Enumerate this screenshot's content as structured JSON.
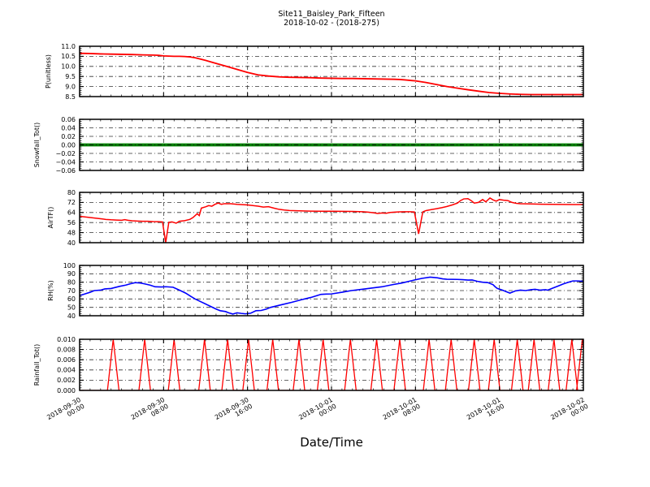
{
  "figure": {
    "title_line1": "Site11_Baisley_Park_Fifteen",
    "title_line2": "2018-10-02 - (2018-275)",
    "background": "#ffffff"
  },
  "x_axis": {
    "label": "Date/Time",
    "range_hours": [
      0,
      48
    ],
    "major_tick_hours": [
      0,
      8,
      16,
      24,
      32,
      40,
      48
    ],
    "minor_tick_step_hours": 1,
    "tick_labels": [
      [
        "2018-09-30",
        "00:00"
      ],
      [
        "2018-09-30",
        "08:00"
      ],
      [
        "2018-09-30",
        "16:00"
      ],
      [
        "2018-10-01",
        "00:00"
      ],
      [
        "2018-10-01",
        "08:00"
      ],
      [
        "2018-10-01",
        "16:00"
      ],
      [
        "2018-10-02",
        "00:00"
      ]
    ],
    "grid": true,
    "grid_style": "dash-dot",
    "grid_color": "#333333"
  },
  "chart_data": [
    {
      "type": "line",
      "name": "p-unitless",
      "ylabel": "P(unitless)",
      "color": "#ff0000",
      "line_width": 1.8,
      "ylim": [
        8.5,
        11.0
      ],
      "yticks": [
        8.5,
        9.0,
        9.5,
        10.0,
        10.5,
        11.0
      ],
      "ytick_labels": [
        "8.5",
        "9.0",
        "9.5",
        "10.0",
        "10.5",
        "11.0"
      ],
      "grid": true,
      "x": [
        0,
        1,
        2,
        3,
        4,
        5,
        6,
        7,
        7.5,
        8,
        8.5,
        9,
        9.5,
        10,
        10.5,
        11,
        12,
        13,
        14,
        15,
        16,
        17,
        18,
        19,
        20,
        21,
        22,
        23,
        24,
        25,
        26,
        27,
        28,
        29,
        30,
        30.5,
        31,
        32,
        33,
        34,
        35,
        36,
        37,
        38,
        39,
        40,
        41,
        42,
        43,
        44,
        45,
        46,
        47,
        48
      ],
      "y": [
        10.65,
        10.64,
        10.62,
        10.61,
        10.6,
        10.59,
        10.57,
        10.56,
        10.55,
        10.52,
        10.51,
        10.5,
        10.5,
        10.49,
        10.47,
        10.43,
        10.3,
        10.15,
        10.0,
        9.85,
        9.7,
        9.58,
        9.52,
        9.48,
        9.46,
        9.45,
        9.44,
        9.42,
        9.41,
        9.4,
        9.4,
        9.39,
        9.38,
        9.37,
        9.36,
        9.35,
        9.33,
        9.28,
        9.2,
        9.1,
        9.0,
        8.92,
        8.84,
        8.77,
        8.7,
        8.66,
        8.63,
        8.61,
        8.6,
        8.6,
        8.6,
        8.6,
        8.6,
        8.6
      ]
    },
    {
      "type": "line",
      "name": "snowfall-tot",
      "ylabel": "Snowfall_Tot()",
      "color": "#008000",
      "line_width": 3.8,
      "ylim": [
        -0.06,
        0.06
      ],
      "yticks": [
        -0.06,
        -0.04,
        -0.02,
        0.0,
        0.02,
        0.04,
        0.06
      ],
      "ytick_labels": [
        "−0.06",
        "−0.04",
        "−0.02",
        "0.00",
        "0.02",
        "0.04",
        "0.06"
      ],
      "grid": true,
      "zero_grid_overlay": true,
      "x": [
        0,
        48
      ],
      "y": [
        0,
        0
      ]
    },
    {
      "type": "line",
      "name": "airtf",
      "ylabel": "AirTF()",
      "color": "#ff0000",
      "line_width": 1.5,
      "ylim": [
        40,
        80
      ],
      "yticks": [
        40,
        48,
        56,
        64,
        72,
        80
      ],
      "ytick_labels": [
        "40",
        "48",
        "56",
        "64",
        "72",
        "80"
      ],
      "grid": true,
      "x": [
        0,
        0.5,
        1,
        1.5,
        2,
        2.5,
        3,
        3.5,
        4,
        4.3,
        4.6,
        5,
        5.5,
        6,
        6.5,
        7,
        7.5,
        7.9,
        8.2,
        8.5,
        8.8,
        9.2,
        9.5,
        10,
        10.5,
        10.8,
        11,
        11.2,
        11.4,
        11.6,
        12,
        12.3,
        12.6,
        12.9,
        13.2,
        13.5,
        13.8,
        14.4,
        15,
        16,
        17,
        17.5,
        18,
        18.5,
        19,
        19.5,
        20,
        21,
        22,
        23,
        24,
        25,
        26,
        27,
        27.5,
        28,
        28.4,
        28.8,
        29.2,
        29.6,
        30,
        30.5,
        31,
        31.5,
        31.9,
        32.3,
        32.7,
        33,
        33.5,
        34,
        34.5,
        35,
        35.5,
        36,
        36.3,
        36.6,
        37,
        37.3,
        37.6,
        38,
        38.4,
        38.7,
        39.1,
        39.4,
        39.7,
        40,
        40.4,
        40.8,
        41.2,
        41.6,
        42,
        43,
        44,
        45,
        46,
        47,
        48
      ],
      "y": [
        61,
        60.5,
        60,
        59.5,
        59,
        58.5,
        58.2,
        58,
        57.8,
        58.3,
        57.8,
        57.4,
        57.2,
        57,
        57,
        56.8,
        56.7,
        56.5,
        40,
        56.2,
        56.5,
        55.5,
        57,
        57.5,
        58.5,
        60,
        61.5,
        63,
        61.5,
        67.5,
        68.5,
        69.5,
        69,
        70.5,
        71.5,
        70.5,
        71,
        71,
        70.5,
        70,
        69,
        68.3,
        68.6,
        67.5,
        66.5,
        66,
        65.6,
        65.3,
        65.1,
        65,
        65,
        64.9,
        64.8,
        64.6,
        64.3,
        63.8,
        63.2,
        63.6,
        63.4,
        64,
        64.3,
        64.5,
        64.6,
        64.6,
        64.4,
        47,
        64.5,
        65.5,
        66.3,
        67,
        67.8,
        68.8,
        70,
        71.5,
        73.5,
        74.8,
        75,
        73.5,
        71.5,
        72,
        74.3,
        72.5,
        75.5,
        74,
        73,
        74.3,
        73.8,
        73.5,
        72,
        71.3,
        71,
        70.8,
        70.6,
        70.5,
        70.4,
        70.3,
        70.3
      ]
    },
    {
      "type": "line",
      "name": "rh",
      "ylabel": "RH(%)",
      "color": "#0000ff",
      "line_width": 1.6,
      "ylim": [
        40,
        100
      ],
      "yticks": [
        40,
        50,
        60,
        70,
        80,
        90,
        100
      ],
      "ytick_labels": [
        "40",
        "50",
        "60",
        "70",
        "80",
        "90",
        "100"
      ],
      "grid": true,
      "x": [
        0,
        0.5,
        1,
        1.4,
        2,
        2.4,
        3,
        3.8,
        4.4,
        4.8,
        5.3,
        5.8,
        6.2,
        6.7,
        7.2,
        7.8,
        8.2,
        8.9,
        9.6,
        10.1,
        10.6,
        11,
        11.5,
        12,
        12.5,
        13,
        13.4,
        13.9,
        14.2,
        14.6,
        15,
        15.4,
        15.8,
        16.3,
        16.8,
        17.3,
        17.8,
        18.2,
        19.2,
        20.2,
        21.1,
        22.1,
        22.6,
        23,
        23.5,
        24,
        25,
        25.9,
        26.9,
        27.8,
        28.8,
        29.8,
        30.7,
        31.7,
        32.6,
        33.4,
        34.1,
        34.6,
        35,
        36,
        36.5,
        37,
        37.4,
        37.9,
        38.4,
        38.9,
        39.4,
        39.6,
        39.8,
        40.3,
        40.8,
        41,
        41.5,
        42,
        42.5,
        43,
        43.4,
        43.9,
        44.4,
        44.6,
        45.1,
        45.6,
        46.1,
        46.6,
        47,
        47.5,
        48
      ],
      "y": [
        64,
        66,
        68,
        70,
        70.5,
        72,
        72.5,
        75,
        76.5,
        78,
        79.5,
        79,
        78,
        76.5,
        74.5,
        74.3,
        74.6,
        74,
        70,
        67,
        63,
        60,
        57,
        54,
        51,
        48,
        46,
        45,
        43.5,
        42,
        43.5,
        42.8,
        42.3,
        43,
        46,
        46.3,
        48,
        50,
        53,
        56,
        59,
        62,
        64,
        65.5,
        65.8,
        66,
        68,
        70,
        71.5,
        73,
        74.5,
        77,
        79,
        82,
        84.5,
        86,
        85.2,
        84,
        83.5,
        83.3,
        83,
        82.5,
        82.6,
        81,
        80,
        79.5,
        77,
        74.5,
        72.5,
        70.5,
        68,
        67,
        69.5,
        70.5,
        70,
        71,
        71.5,
        70.5,
        71,
        70.5,
        73,
        75.5,
        78,
        80,
        81.5,
        81.5,
        81
      ]
    },
    {
      "type": "spikes",
      "name": "rainfall-tot",
      "ylabel": "Rainfall_Tot()",
      "color": "#ff0000",
      "line_width": 1.3,
      "ylim": [
        0,
        0.01
      ],
      "yticks": [
        0,
        0.002,
        0.004,
        0.006,
        0.008,
        0.01
      ],
      "ytick_labels": [
        "0.000",
        "0.002",
        "0.004",
        "0.006",
        "0.008",
        "0.010"
      ],
      "grid": true,
      "baseline": 0,
      "spike_peak": 0.01,
      "spike_half_width_hours": 0.55,
      "spike_centers_hours": [
        3.2,
        6.2,
        9.0,
        11.9,
        14.1,
        16.1,
        18.4,
        20.9,
        23.2,
        25.8,
        28.3,
        30.5,
        33.3,
        35.4,
        37.6,
        39.5,
        41.7,
        43.3,
        45.2,
        46.9,
        47.9
      ]
    }
  ]
}
